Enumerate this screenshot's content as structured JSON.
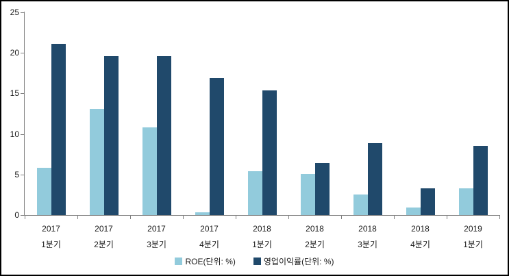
{
  "chart_data": {
    "type": "bar",
    "categories": [
      {
        "line1": "2017",
        "line2": "1분기"
      },
      {
        "line1": "2017",
        "line2": "2분기"
      },
      {
        "line1": "2017",
        "line2": "3분기"
      },
      {
        "line1": "2017",
        "line2": "4분기"
      },
      {
        "line1": "2018",
        "line2": "1분기"
      },
      {
        "line1": "2018",
        "line2": "2분기"
      },
      {
        "line1": "2018",
        "line2": "3분기"
      },
      {
        "line1": "2018",
        "line2": "4분기"
      },
      {
        "line1": "2019",
        "line2": "1분기"
      }
    ],
    "series": [
      {
        "name": "ROE(단위: %)",
        "color": "#92CBDC",
        "values": [
          5.8,
          13.1,
          10.8,
          0.3,
          5.4,
          5.1,
          2.5,
          0.9,
          3.3
        ]
      },
      {
        "name": "영업이익률(단위: %)",
        "color": "#20496B",
        "values": [
          21.1,
          19.6,
          19.6,
          16.9,
          15.4,
          6.4,
          8.9,
          3.3,
          8.5
        ]
      }
    ],
    "title": "",
    "xlabel": "",
    "ylabel": "",
    "ylim": [
      0,
      25
    ],
    "yticks": [
      0,
      5,
      10,
      15,
      20,
      25
    ],
    "grid": false,
    "legend_position": "bottom",
    "axis_color": "#808080",
    "label_color": "#1a1a1a",
    "background_color": "#ffffff",
    "border_color": "#000000"
  }
}
